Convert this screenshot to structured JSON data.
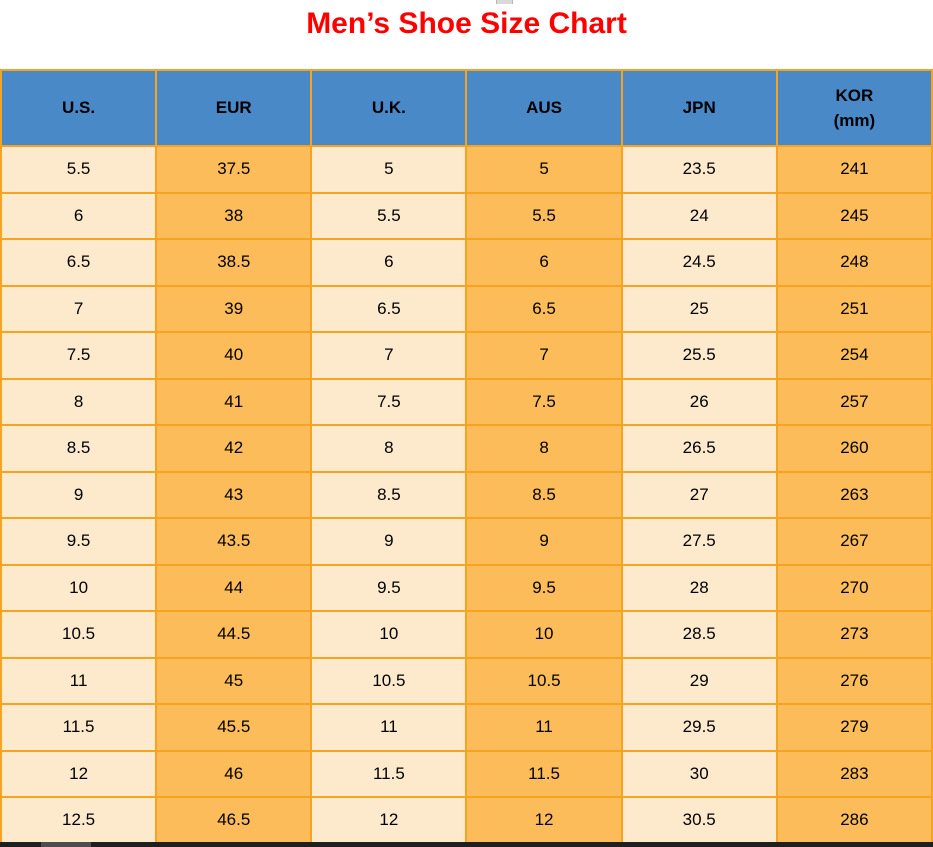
{
  "title": "Men’s Shoe Size Chart",
  "columns": [
    {
      "label": "U.S."
    },
    {
      "label": "EUR"
    },
    {
      "label": "U.K."
    },
    {
      "label": "AUS"
    },
    {
      "label": "JPN"
    },
    {
      "label": "KOR",
      "sublabel": "(mm)"
    }
  ],
  "chart_data": {
    "type": "table",
    "title": "Men’s Shoe Size Chart",
    "columns": [
      "U.S.",
      "EUR",
      "U.K.",
      "AUS",
      "JPN",
      "KOR (mm)"
    ],
    "rows": [
      [
        "5.5",
        "37.5",
        "5",
        "5",
        "23.5",
        "241"
      ],
      [
        "6",
        "38",
        "5.5",
        "5.5",
        "24",
        "245"
      ],
      [
        "6.5",
        "38.5",
        "6",
        "6",
        "24.5",
        "248"
      ],
      [
        "7",
        "39",
        "6.5",
        "6.5",
        "25",
        "251"
      ],
      [
        "7.5",
        "40",
        "7",
        "7",
        "25.5",
        "254"
      ],
      [
        "8",
        "41",
        "7.5",
        "7.5",
        "26",
        "257"
      ],
      [
        "8.5",
        "42",
        "8",
        "8",
        "26.5",
        "260"
      ],
      [
        "9",
        "43",
        "8.5",
        "8.5",
        "27",
        "263"
      ],
      [
        "9.5",
        "43.5",
        "9",
        "9",
        "27.5",
        "267"
      ],
      [
        "10",
        "44",
        "9.5",
        "9.5",
        "28",
        "270"
      ],
      [
        "10.5",
        "44.5",
        "10",
        "10",
        "28.5",
        "273"
      ],
      [
        "11",
        "45",
        "10.5",
        "10.5",
        "29",
        "276"
      ],
      [
        "11.5",
        "45.5",
        "11",
        "11",
        "29.5",
        "279"
      ],
      [
        "12",
        "46",
        "11.5",
        "11.5",
        "30",
        "283"
      ],
      [
        "12.5",
        "46.5",
        "12",
        "12",
        "30.5",
        "286"
      ]
    ]
  },
  "colors": {
    "title": "#ff0000",
    "header_bg": "#4a89c8",
    "col_light": "#fdeacd",
    "col_orange": "#fcbc59",
    "border": "#f5a321",
    "text": "#000000",
    "scrollbar_track": "#1f1f1f",
    "scrollbar_thumb": "#4d4d4d"
  }
}
